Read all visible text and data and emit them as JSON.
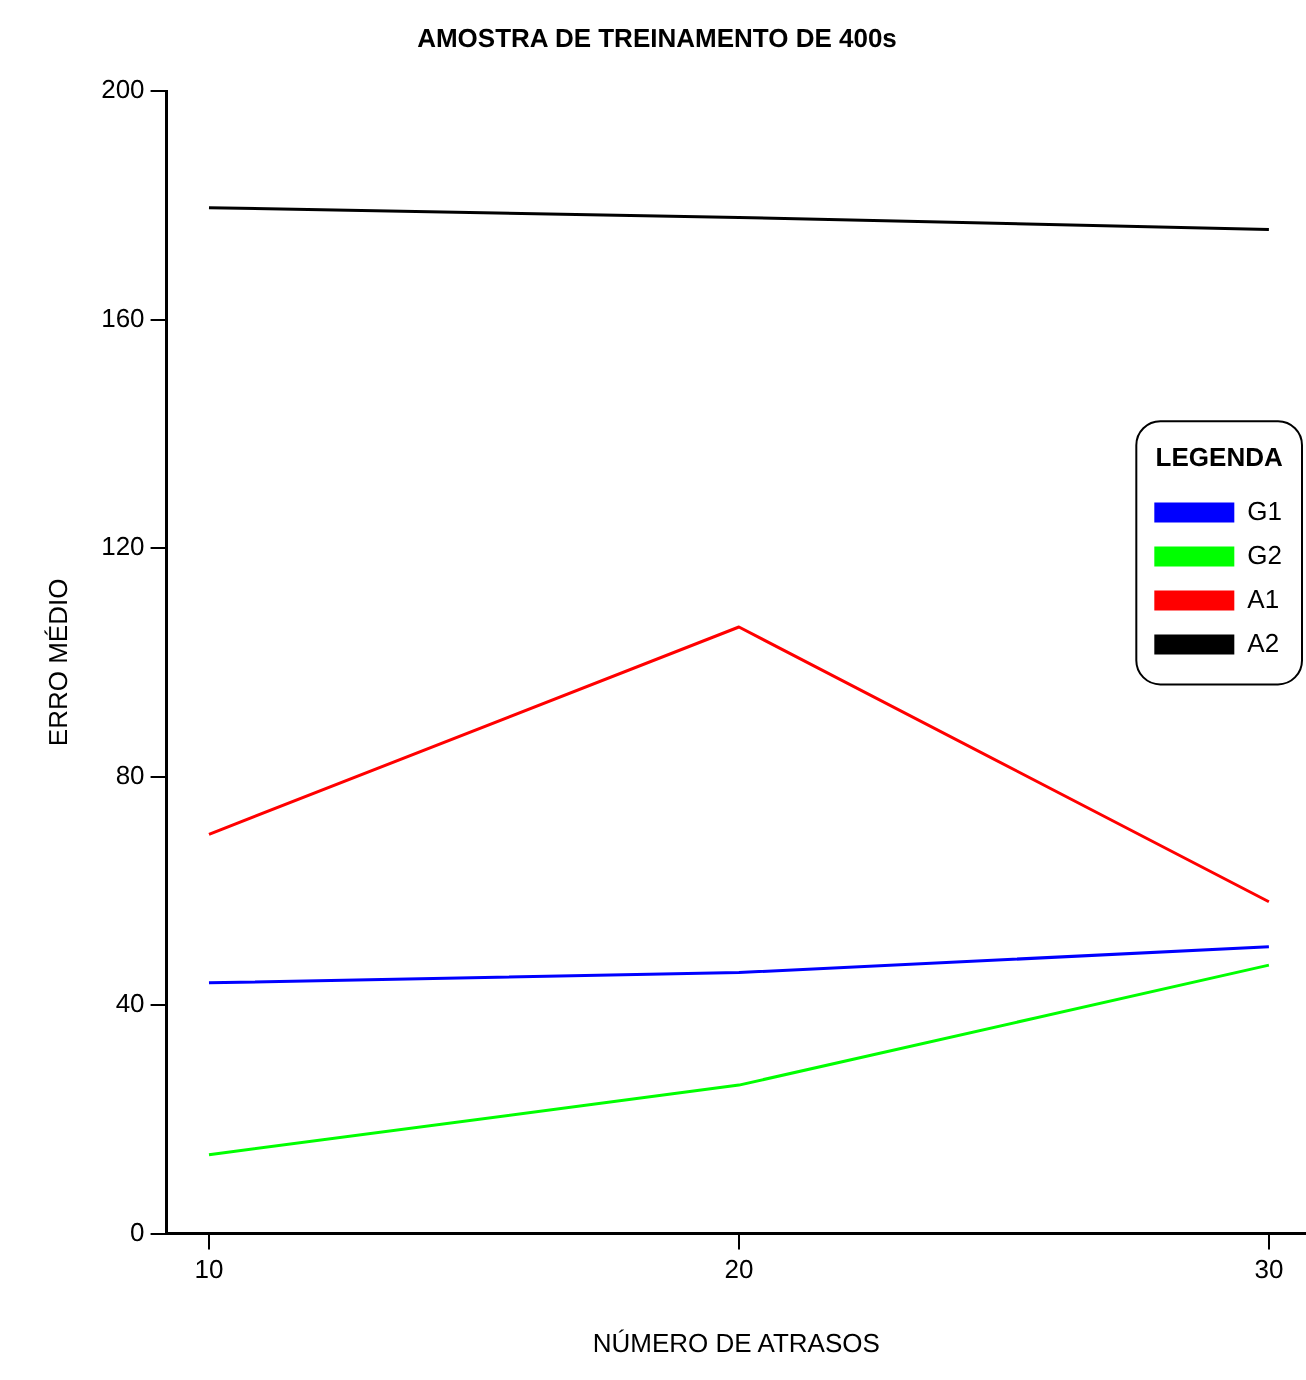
{
  "chart_data": {
    "type": "line",
    "title": "AMOSTRA DE TREINAMENTO DE 400s",
    "xlabel": "NÚMERO DE ATRASOS",
    "ylabel": "ERRO MÉDIO",
    "legend_title": "LEGENDA",
    "x": [
      10,
      20,
      30
    ],
    "series": [
      {
        "name": "G1",
        "color": "#0000ff",
        "values": [
          43.9,
          45.7,
          50.2
        ]
      },
      {
        "name": "G2",
        "color": "#00ff00",
        "values": [
          13.8,
          26,
          47
        ]
      },
      {
        "name": "A1",
        "color": "#ff0000",
        "values": [
          69.9,
          106.2,
          58.1
        ]
      },
      {
        "name": "A2",
        "color": "#000000",
        "values": [
          179.6,
          177.9,
          175.8
        ]
      }
    ],
    "xlim": [
      9.2,
      30.7
    ],
    "xticks": [
      10,
      20,
      30
    ],
    "ylim": [
      0,
      200
    ],
    "yticks": [
      0,
      40,
      80,
      120,
      160,
      200
    ],
    "grid": false,
    "legend": "right",
    "marker": "none",
    "line_style": "solid"
  }
}
